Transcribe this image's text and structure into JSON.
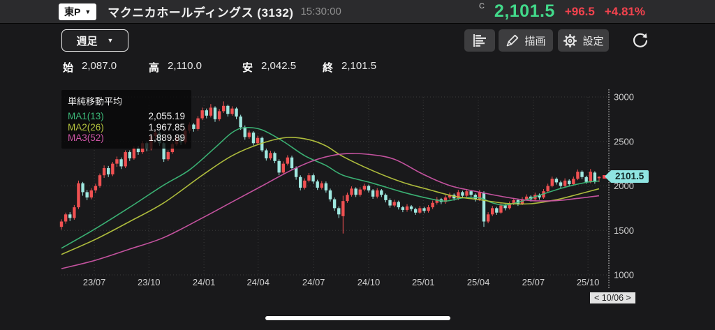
{
  "header": {
    "market_badge": "東P",
    "title": "マクニカホールディングス (3132)",
    "time": "15:30:00",
    "close_flag": "C",
    "price": "2,101.5",
    "change": "+96.5",
    "change_pct": "+4.81%"
  },
  "toolbar": {
    "timeframe": "週足",
    "draw_label": "描画",
    "settings_label": "設定"
  },
  "ohlc": {
    "items": [
      {
        "label": "始",
        "value": "2,087.0"
      },
      {
        "label": "高",
        "value": "2,110.0"
      },
      {
        "label": "安",
        "value": "2,042.5"
      },
      {
        "label": "終",
        "value": "2,101.5"
      }
    ]
  },
  "legend": {
    "title": "単純移動平均",
    "items": [
      {
        "label": "MA1(13)",
        "value": "2,055.19",
        "color": "#3cb878"
      },
      {
        "label": "MA2(26)",
        "value": "1,967.85",
        "color": "#b5c43e"
      },
      {
        "label": "MA3(52)",
        "value": "1,889.89",
        "color": "#cc55a5"
      }
    ]
  },
  "price_tag": {
    "value": "2101.5",
    "color": "#8fe5e2"
  },
  "pager": {
    "label": "< 10/06 >"
  },
  "chart_data": {
    "type": "candlestick",
    "title": "マクニカホールディングス (3132) 週足",
    "ylim": [
      1000,
      3000
    ],
    "y_ticks": [
      3000,
      2500,
      2000,
      1500,
      1000
    ],
    "x_ticks": [
      {
        "label": "23/07",
        "week": 7.7
      },
      {
        "label": "23/10",
        "week": 20.5
      },
      {
        "label": "24/01",
        "week": 33.4
      },
      {
        "label": "24/04",
        "week": 46.1
      },
      {
        "label": "24/07",
        "week": 59.1
      },
      {
        "label": "24/10",
        "week": 72.0
      },
      {
        "label": "25/01",
        "week": 84.8
      },
      {
        "label": "25/04",
        "week": 97.7
      },
      {
        "label": "25/07",
        "week": 110.6
      },
      {
        "label": "25/10",
        "week": 123.4
      }
    ],
    "grid": true,
    "legend_position": "top-left",
    "colors": {
      "up": "#f05152",
      "down": "#9fe8e0",
      "grid": "#3b3b3b",
      "axis": "#a8a8a8",
      "tick_text": "#cfcfcf"
    },
    "candles": [
      [
        1540,
        1625,
        1510,
        1600
      ],
      [
        1600,
        1700,
        1575,
        1680
      ],
      [
        1680,
        1705,
        1605,
        1640
      ],
      [
        1640,
        1785,
        1620,
        1760
      ],
      [
        1760,
        2060,
        1740,
        2030
      ],
      [
        2030,
        2045,
        1890,
        1930
      ],
      [
        1930,
        1955,
        1840,
        1870
      ],
      [
        1870,
        1975,
        1850,
        1950
      ],
      [
        1950,
        2025,
        1920,
        2000
      ],
      [
        2000,
        2140,
        1980,
        2120
      ],
      [
        2120,
        2230,
        2090,
        2200
      ],
      [
        2200,
        2225,
        2100,
        2130
      ],
      [
        2130,
        2270,
        2110,
        2250
      ],
      [
        2250,
        2330,
        2215,
        2300
      ],
      [
        2300,
        2320,
        2190,
        2220
      ],
      [
        2220,
        2400,
        2200,
        2380
      ],
      [
        2380,
        2400,
        2280,
        2310
      ],
      [
        2310,
        2445,
        2295,
        2420
      ],
      [
        2420,
        2450,
        2350,
        2380
      ],
      [
        2380,
        2505,
        2360,
        2480
      ],
      [
        2480,
        2500,
        2390,
        2420
      ],
      [
        2420,
        2580,
        2400,
        2560
      ],
      [
        2560,
        2625,
        2530,
        2600
      ],
      [
        2600,
        2615,
        2450,
        2480
      ],
      [
        2480,
        2500,
        2270,
        2300
      ],
      [
        2300,
        2400,
        2280,
        2380
      ],
      [
        2380,
        2490,
        2360,
        2470
      ],
      [
        2470,
        2575,
        2450,
        2550
      ],
      [
        2550,
        2570,
        2460,
        2490
      ],
      [
        2490,
        2645,
        2470,
        2620
      ],
      [
        2620,
        2715,
        2590,
        2690
      ],
      [
        2690,
        2705,
        2610,
        2640
      ],
      [
        2640,
        2785,
        2620,
        2760
      ],
      [
        2760,
        2880,
        2740,
        2850
      ],
      [
        2850,
        2870,
        2760,
        2790
      ],
      [
        2790,
        2920,
        2770,
        2880
      ],
      [
        2880,
        2895,
        2720,
        2750
      ],
      [
        2750,
        2865,
        2730,
        2840
      ],
      [
        2840,
        2950,
        2820,
        2900
      ],
      [
        2900,
        2915,
        2780,
        2810
      ],
      [
        2810,
        2895,
        2790,
        2870
      ],
      [
        2870,
        2885,
        2750,
        2780
      ],
      [
        2780,
        2800,
        2630,
        2660
      ],
      [
        2660,
        2680,
        2520,
        2550
      ],
      [
        2550,
        2625,
        2530,
        2600
      ],
      [
        2600,
        2615,
        2455,
        2480
      ],
      [
        2480,
        2565,
        2460,
        2540
      ],
      [
        2540,
        2555,
        2380,
        2400
      ],
      [
        2400,
        2420,
        2285,
        2310
      ],
      [
        2310,
        2395,
        2290,
        2370
      ],
      [
        2370,
        2385,
        2255,
        2280
      ],
      [
        2280,
        2300,
        2120,
        2150
      ],
      [
        2150,
        2275,
        2130,
        2250
      ],
      [
        2250,
        2345,
        2230,
        2320
      ],
      [
        2320,
        2340,
        2175,
        2200
      ],
      [
        2200,
        2220,
        2070,
        2100
      ],
      [
        2100,
        2120,
        1950,
        1980
      ],
      [
        1980,
        2085,
        1960,
        2060
      ],
      [
        2060,
        2145,
        2040,
        2120
      ],
      [
        2120,
        2140,
        2025,
        2050
      ],
      [
        2050,
        2070,
        1955,
        1980
      ],
      [
        1980,
        2055,
        1960,
        2030
      ],
      [
        2030,
        2050,
        1925,
        1950
      ],
      [
        1950,
        1970,
        1825,
        1850
      ],
      [
        1850,
        1870,
        1720,
        1750
      ],
      [
        1750,
        1770,
        1640,
        1680
      ],
      [
        1660,
        1890,
        1465,
        1830
      ],
      [
        1830,
        1925,
        1810,
        1900
      ],
      [
        1900,
        1995,
        1880,
        1970
      ],
      [
        1970,
        1985,
        1875,
        1900
      ],
      [
        1900,
        1985,
        1880,
        1960
      ],
      [
        1960,
        2025,
        1940,
        2000
      ],
      [
        2000,
        2015,
        1925,
        1950
      ],
      [
        1950,
        1965,
        1855,
        1880
      ],
      [
        1880,
        1975,
        1860,
        1950
      ],
      [
        1950,
        1965,
        1875,
        1900
      ],
      [
        1900,
        1915,
        1815,
        1840
      ],
      [
        1840,
        1860,
        1755,
        1780
      ],
      [
        1780,
        1845,
        1760,
        1820
      ],
      [
        1820,
        1835,
        1735,
        1760
      ],
      [
        1760,
        1775,
        1705,
        1730
      ],
      [
        1730,
        1795,
        1710,
        1770
      ],
      [
        1770,
        1785,
        1715,
        1740
      ],
      [
        1740,
        1755,
        1675,
        1700
      ],
      [
        1700,
        1775,
        1685,
        1750
      ],
      [
        1750,
        1765,
        1695,
        1720
      ],
      [
        1720,
        1785,
        1700,
        1760
      ],
      [
        1760,
        1835,
        1740,
        1810
      ],
      [
        1810,
        1875,
        1790,
        1850
      ],
      [
        1850,
        1865,
        1795,
        1820
      ],
      [
        1820,
        1895,
        1800,
        1870
      ],
      [
        1870,
        1925,
        1850,
        1900
      ],
      [
        1900,
        1915,
        1835,
        1860
      ],
      [
        1860,
        1955,
        1840,
        1930
      ],
      [
        1930,
        1945,
        1865,
        1890
      ],
      [
        1890,
        1965,
        1870,
        1940
      ],
      [
        1940,
        1955,
        1875,
        1900
      ],
      [
        1900,
        1915,
        1825,
        1850
      ],
      [
        1850,
        1955,
        1830,
        1930
      ],
      [
        1920,
        1940,
        1540,
        1600
      ],
      [
        1600,
        1705,
        1580,
        1680
      ],
      [
        1680,
        1775,
        1660,
        1750
      ],
      [
        1750,
        1765,
        1675,
        1700
      ],
      [
        1700,
        1805,
        1685,
        1780
      ],
      [
        1780,
        1795,
        1725,
        1750
      ],
      [
        1750,
        1825,
        1735,
        1800
      ],
      [
        1800,
        1865,
        1785,
        1840
      ],
      [
        1840,
        1855,
        1775,
        1800
      ],
      [
        1800,
        1875,
        1785,
        1850
      ],
      [
        1850,
        1905,
        1835,
        1880
      ],
      [
        1880,
        1895,
        1825,
        1850
      ],
      [
        1850,
        1925,
        1835,
        1900
      ],
      [
        1900,
        1915,
        1845,
        1870
      ],
      [
        1870,
        1965,
        1855,
        1940
      ],
      [
        1940,
        2025,
        1925,
        2000
      ],
      [
        2000,
        2105,
        1985,
        2080
      ],
      [
        2080,
        2095,
        2015,
        2040
      ],
      [
        2040,
        2060,
        1975,
        2000
      ],
      [
        2000,
        2085,
        1985,
        2060
      ],
      [
        2060,
        2075,
        1995,
        2020
      ],
      [
        2020,
        2105,
        2005,
        2080
      ],
      [
        2080,
        2185,
        2065,
        2160
      ],
      [
        2160,
        2175,
        2075,
        2100
      ],
      [
        2100,
        2115,
        2025,
        2045
      ],
      [
        2045,
        2190,
        2030,
        2160
      ],
      [
        2150,
        2165,
        2025,
        2045
      ],
      [
        2087,
        2110,
        2042.5,
        2101.5
      ]
    ],
    "overlays": [
      {
        "name": "MA1(13)",
        "value": 2055.19,
        "color": "#3cb878",
        "points": [
          [
            0,
            1300
          ],
          [
            8,
            1520
          ],
          [
            16,
            1760
          ],
          [
            24,
            2010
          ],
          [
            30,
            2180
          ],
          [
            36,
            2430
          ],
          [
            40,
            2600
          ],
          [
            43,
            2655
          ],
          [
            47,
            2630
          ],
          [
            52,
            2500
          ],
          [
            57,
            2340
          ],
          [
            62,
            2230
          ],
          [
            66,
            2120
          ],
          [
            73,
            2030
          ],
          [
            80,
            1930
          ],
          [
            86,
            1860
          ],
          [
            90,
            1830
          ],
          [
            94,
            1865
          ],
          [
            98,
            1865
          ],
          [
            101,
            1810
          ],
          [
            104,
            1785
          ],
          [
            108,
            1830
          ],
          [
            112,
            1895
          ],
          [
            118,
            1985
          ],
          [
            123,
            2040
          ],
          [
            126,
            2055
          ]
        ]
      },
      {
        "name": "MA2(26)",
        "value": 1967.85,
        "color": "#b5c43e",
        "points": [
          [
            0,
            1230
          ],
          [
            8,
            1400
          ],
          [
            16,
            1600
          ],
          [
            24,
            1810
          ],
          [
            33,
            2120
          ],
          [
            40,
            2340
          ],
          [
            47,
            2480
          ],
          [
            53,
            2545
          ],
          [
            58,
            2520
          ],
          [
            62,
            2450
          ],
          [
            66,
            2330
          ],
          [
            73,
            2170
          ],
          [
            80,
            2040
          ],
          [
            86,
            1960
          ],
          [
            92,
            1885
          ],
          [
            98,
            1845
          ],
          [
            104,
            1805
          ],
          [
            110,
            1800
          ],
          [
            116,
            1845
          ],
          [
            121,
            1905
          ],
          [
            126,
            1968
          ]
        ]
      },
      {
        "name": "MA3(52)",
        "value": 1889.89,
        "color": "#cc55a5",
        "points": [
          [
            0,
            1070
          ],
          [
            8,
            1165
          ],
          [
            16,
            1290
          ],
          [
            24,
            1420
          ],
          [
            33,
            1640
          ],
          [
            40,
            1820
          ],
          [
            47,
            2000
          ],
          [
            54,
            2180
          ],
          [
            60,
            2300
          ],
          [
            66,
            2360
          ],
          [
            72,
            2355
          ],
          [
            78,
            2300
          ],
          [
            84,
            2150
          ],
          [
            88,
            2060
          ],
          [
            92,
            1990
          ],
          [
            98,
            1930
          ],
          [
            104,
            1875
          ],
          [
            110,
            1835
          ],
          [
            116,
            1835
          ],
          [
            121,
            1860
          ],
          [
            126,
            1890
          ]
        ]
      }
    ],
    "last_close": 2101.5
  }
}
